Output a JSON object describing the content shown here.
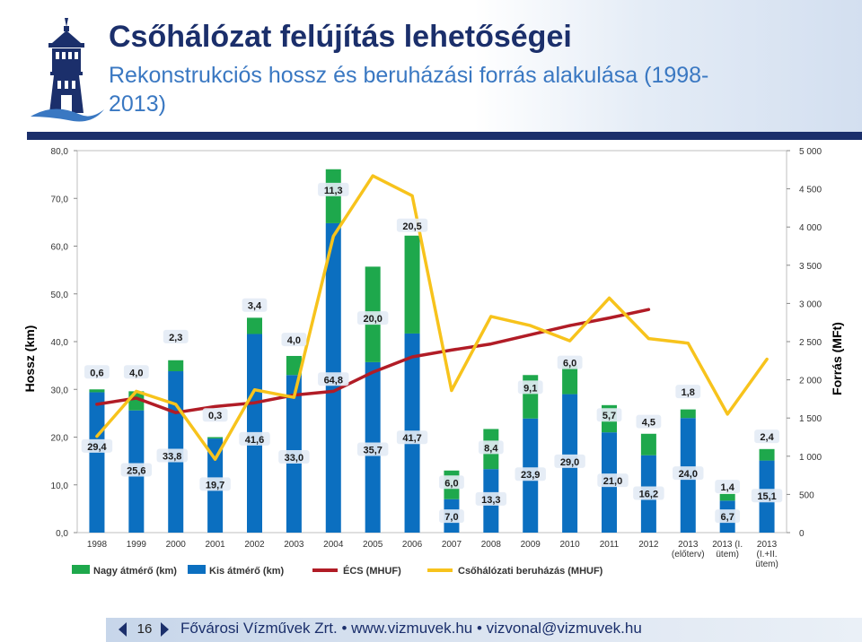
{
  "header": {
    "title": "Csőhálózat felújítás lehetőségei",
    "subtitle": "Rekonstrukciós hossz és beruházási forrás alakulása (1998-2013)"
  },
  "footer": {
    "page_number": "16",
    "text": "Fővárosi Vízművek Zrt. • www.vizmuvek.hu • vizvonal@vizmuvek.hu"
  },
  "chart_data": {
    "type": "bar",
    "title": "",
    "ylabel": "Hossz (km)",
    "y2label": "Forrás (MFt)",
    "ylim": [
      0,
      80
    ],
    "y2lim": [
      0,
      5000
    ],
    "yticks": [
      "0,0",
      "10,0",
      "20,0",
      "30,0",
      "40,0",
      "50,0",
      "60,0",
      "70,0",
      "80,0"
    ],
    "y2ticks": [
      "0",
      "500",
      "1 000",
      "1 500",
      "2 000",
      "2 500",
      "3 000",
      "3 500",
      "4 000",
      "4 500",
      "5 000"
    ],
    "grid": false,
    "legend_position": "bottom",
    "categories": [
      [
        "1998"
      ],
      [
        "1999"
      ],
      [
        "2000"
      ],
      [
        "2001"
      ],
      [
        "2002"
      ],
      [
        "2003"
      ],
      [
        "2004"
      ],
      [
        "2005"
      ],
      [
        "2006"
      ],
      [
        "2007"
      ],
      [
        "2008"
      ],
      [
        "2009"
      ],
      [
        "2010"
      ],
      [
        "2011"
      ],
      [
        "2012"
      ],
      [
        "2013",
        "(előterv)"
      ],
      [
        "2013 (I.",
        "ütem)"
      ],
      [
        "2013",
        "(I.+II.",
        "ütem)"
      ]
    ],
    "series": [
      {
        "name": "Kis átmérő (km)",
        "kind": "bar-stacked",
        "color": "#0b6fc0",
        "values": [
          29.4,
          25.6,
          33.8,
          19.7,
          41.6,
          33.0,
          64.8,
          35.7,
          41.7,
          7.0,
          13.3,
          23.9,
          29.0,
          21.0,
          16.2,
          24.0,
          6.7,
          15.1
        ],
        "labels": [
          "29,4",
          "25,6",
          "33,8",
          "19,7",
          "41,6",
          "33,0",
          "64,8",
          "35,7",
          "41,7",
          "7,0",
          "13,3",
          "23,9",
          "29,0",
          "21,0",
          "16,2",
          "24,0",
          "6,7",
          "15,1"
        ]
      },
      {
        "name": "Nagy átmérő (km)",
        "kind": "bar-stacked",
        "color": "#1ea84c",
        "values": [
          0.6,
          4.0,
          2.3,
          0.3,
          3.4,
          4.0,
          11.3,
          20.0,
          20.5,
          6.0,
          8.4,
          9.1,
          6.0,
          5.7,
          4.5,
          1.8,
          1.4,
          2.4
        ],
        "labels": [
          "0,6",
          "4,0",
          "2,3",
          "0,3",
          "3,4",
          "4,0",
          "11,3",
          "20,0",
          "20,5",
          "6,0",
          "8,4",
          "9,1",
          "6,0",
          "5,7",
          "4,5",
          "1,8",
          "1,4",
          "2,4"
        ]
      },
      {
        "name": "ÉCS (MHUF)",
        "kind": "line",
        "axis": "right",
        "color": "#b11c26",
        "values": [
          1680,
          1760,
          1570,
          1650,
          1700,
          1800,
          1850,
          2100,
          2300,
          2390,
          2470,
          2590,
          2710,
          2810,
          2920,
          null,
          null,
          null
        ]
      },
      {
        "name": "Csőhálózati beruházás (MHUF)",
        "kind": "line",
        "axis": "right",
        "color": "#f7c31c",
        "values": [
          1260,
          1850,
          1680,
          960,
          1870,
          1770,
          3880,
          4670,
          4410,
          1860,
          2830,
          2710,
          2510,
          3070,
          2540,
          2480,
          1550,
          2270
        ]
      }
    ]
  }
}
